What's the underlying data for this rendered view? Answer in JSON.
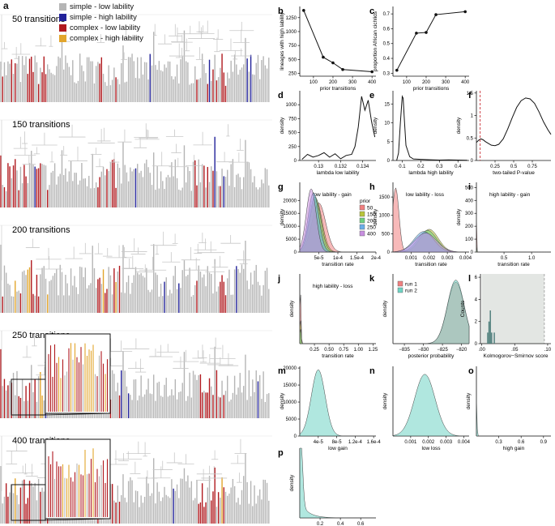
{
  "figure": {
    "legend": [
      {
        "label": "simple - low lability",
        "color": "#b5b5b5"
      },
      {
        "label": "simple - high lability",
        "color": "#22229a"
      },
      {
        "label": "complex - low lability",
        "color": "#b0191e"
      },
      {
        "label": "complex - high lability",
        "color": "#e2a52c"
      }
    ],
    "panel_a": {
      "letter": "a",
      "rows": [
        "50 transitions",
        "150 transitions",
        "200 transitions",
        "250 transitions",
        "400 transitions"
      ]
    }
  },
  "chart_data": [
    {
      "id": "b",
      "type": "line",
      "xlabel": "prior transitions",
      "ylabel": "lineages with high lability",
      "x": [
        50,
        150,
        200,
        250,
        400
      ],
      "y": [
        1380,
        540,
        440,
        320,
        280
      ],
      "xlim": [
        30,
        420
      ],
      "ylim": [
        200,
        1450
      ],
      "xticks": [
        100,
        200,
        300,
        400
      ],
      "yticks": [
        250,
        500,
        750,
        1000,
        1250
      ]
    },
    {
      "id": "c",
      "type": "line",
      "xlabel": "prior transitions",
      "ylabel": "proportion African cichlids",
      "x": [
        50,
        150,
        200,
        250,
        400
      ],
      "y": [
        0.32,
        0.57,
        0.575,
        0.695,
        0.715
      ],
      "xlim": [
        30,
        420
      ],
      "ylim": [
        0.28,
        0.75
      ],
      "xticks": [
        100,
        200,
        300,
        400
      ],
      "yticks": [
        0.3,
        0.4,
        0.5,
        0.6,
        0.7
      ]
    },
    {
      "id": "d",
      "type": "line",
      "xlabel": "lambda low lability",
      "ylabel": "density",
      "x": [
        0.1285,
        0.129,
        0.1295,
        0.13,
        0.1305,
        0.131,
        0.1315,
        0.132,
        0.1325,
        0.133,
        0.1333,
        0.1336,
        0.1339,
        0.1342,
        0.1345,
        0.1348,
        0.1351
      ],
      "y": [
        20,
        110,
        60,
        90,
        140,
        60,
        120,
        30,
        90,
        110,
        250,
        600,
        1150,
        900,
        1080,
        700,
        420
      ],
      "xlim": [
        0.1283,
        0.1352
      ],
      "ylim": [
        0,
        1250
      ],
      "xticks": [
        0.13,
        0.132,
        0.134
      ],
      "yticks": [
        0,
        250,
        500,
        750,
        1000
      ]
    },
    {
      "id": "e",
      "type": "line",
      "xlabel": "lambda high lability",
      "ylabel": "density",
      "x": [
        0.07,
        0.08,
        0.09,
        0.1,
        0.105,
        0.11,
        0.12,
        0.14,
        0.16,
        0.2,
        0.25,
        0.3,
        0.35,
        0.4,
        0.45
      ],
      "y": [
        0,
        2,
        10,
        17,
        16.5,
        12,
        4,
        1,
        0.4,
        0.3,
        0.2,
        0.1,
        0.15,
        0.1,
        0.05
      ],
      "xlim": [
        0.05,
        0.46
      ],
      "ylim": [
        0,
        18.5
      ],
      "xticks": [
        0.1,
        0.2,
        0.3,
        0.4
      ],
      "yticks": [
        0,
        5,
        10,
        15
      ]
    },
    {
      "id": "f",
      "type": "line",
      "xlabel": "two-tailed P-value",
      "ylabel": "density",
      "x": [
        0.0,
        0.03,
        0.06,
        0.09,
        0.12,
        0.16,
        0.2,
        0.25,
        0.3,
        0.36,
        0.42,
        0.48,
        0.54,
        0.6,
        0.66,
        0.72,
        0.78,
        0.84,
        0.9,
        0.96,
        1.0
      ],
      "y": [
        0.4,
        0.45,
        0.48,
        0.46,
        0.42,
        0.38,
        0.34,
        0.33,
        0.36,
        0.48,
        0.7,
        0.95,
        1.18,
        1.33,
        1.39,
        1.37,
        1.27,
        1.08,
        0.86,
        0.68,
        0.58
      ],
      "xlim": [
        0.0,
        1.0
      ],
      "ylim": [
        0.0,
        1.55
      ],
      "xticks": [
        0.25,
        0.5,
        0.75
      ],
      "yticks": [
        0,
        0.5,
        1.0,
        1.5
      ],
      "threshold": 0.05
    },
    {
      "id": "g",
      "type": "area",
      "title": "low lability - gain",
      "xlabel": "transition rate",
      "ylabel": "density",
      "legend_title": "prior",
      "xlim": [
        0,
        0.0002
      ],
      "ylim": [
        0,
        27000
      ],
      "xticks": [
        5e-05,
        0.0001,
        0.00015,
        0.0002
      ],
      "xtick_labels": [
        "5e-5",
        "1e-4",
        "1.5e-4",
        "2e-4"
      ],
      "yticks": [
        0,
        5000,
        10000,
        15000,
        20000
      ],
      "series": [
        {
          "name": "50",
          "color": "#f08080",
          "mean": 5e-05,
          "sd": 1.8e-05,
          "peak": 19000
        },
        {
          "name": "150",
          "color": "#b8c43a",
          "mean": 4.2e-05,
          "sd": 1.6e-05,
          "peak": 20500
        },
        {
          "name": "200",
          "color": "#6fcf80",
          "mean": 4e-05,
          "sd": 1.5e-05,
          "peak": 21500
        },
        {
          "name": "250",
          "color": "#6aaee8",
          "mean": 3.6e-05,
          "sd": 1.4e-05,
          "peak": 23000
        },
        {
          "name": "400",
          "color": "#c88fe0",
          "mean": 3e-05,
          "sd": 1.3e-05,
          "peak": 24500
        }
      ]
    },
    {
      "id": "h",
      "type": "area",
      "title": "low lability - loss",
      "xlabel": "transition rate",
      "ylabel": "density",
      "xlim": [
        0,
        0.0042
      ],
      "ylim": [
        0,
        1900
      ],
      "xticks": [
        0.001,
        0.002,
        0.003,
        0.004
      ],
      "xtick_labels": [
        "0.001",
        "0.002",
        "0.003",
        "0.004"
      ],
      "yticks": [
        0,
        500,
        1000,
        1500
      ],
      "series": [
        {
          "name": "50",
          "color": "#f08080",
          "mean": 0.00015,
          "sd": 0.00018,
          "peak": 1750
        },
        {
          "name": "150",
          "color": "#b8c43a",
          "mean": 0.002,
          "sd": 0.0005,
          "peak": 620
        },
        {
          "name": "200",
          "color": "#6fcf80",
          "mean": 0.0019,
          "sd": 0.00052,
          "peak": 590
        },
        {
          "name": "250",
          "color": "#6aaee8",
          "mean": 0.0017,
          "sd": 0.00055,
          "peak": 560
        },
        {
          "name": "400",
          "color": "#c88fe0",
          "mean": 0.0018,
          "sd": 0.0006,
          "peak": 520
        }
      ]
    },
    {
      "id": "i",
      "type": "area",
      "title": "high lability - gain",
      "xlabel": "transition rate",
      "ylabel": "density",
      "xlim": [
        0,
        1.35
      ],
      "ylim": [
        0,
        540
      ],
      "xticks": [
        0.5,
        1.0
      ],
      "xtick_labels": [
        "0.5",
        "1.0"
      ],
      "yticks": [
        0,
        100,
        200,
        300,
        400,
        500
      ],
      "series": [
        {
          "name": "50",
          "color": "#f08080",
          "mean": 0.004,
          "sd": 0.004,
          "peak": 480
        },
        {
          "name": "150",
          "color": "#b8c43a",
          "mean": 0.004,
          "sd": 0.004,
          "peak": 90
        },
        {
          "name": "200",
          "color": "#6fcf80",
          "mean": 0.004,
          "sd": 0.004,
          "peak": 60
        }
      ]
    },
    {
      "id": "j",
      "type": "area",
      "title": "high lability - loss",
      "xlabel": "transition rate",
      "ylabel": "density",
      "xlim": [
        0,
        1.3
      ],
      "ylim": [
        0,
        100
      ],
      "xticks": [
        0.25,
        0.5,
        0.75,
        1.0,
        1.25
      ],
      "xtick_labels": [
        "0.25",
        "0.50",
        "0.75",
        "1.00",
        "1.25"
      ],
      "yticks": [],
      "series": [
        {
          "name": "50",
          "color": "#f08080",
          "mean": 0.01,
          "sd": 0.01,
          "peak": 85
        },
        {
          "name": "150",
          "color": "#b8c43a",
          "mean": 0.01,
          "sd": 0.01,
          "peak": 40
        },
        {
          "name": "200",
          "color": "#6fcf80",
          "mean": 0.01,
          "sd": 0.01,
          "peak": 25
        }
      ]
    },
    {
      "id": "k",
      "type": "area",
      "xlabel": "posterior probability",
      "ylabel": "density",
      "xlim": [
        -838,
        -818
      ],
      "ylim": [
        0,
        0.34
      ],
      "xticks": [
        -835,
        -830,
        -825,
        -820
      ],
      "xtick_labels": [
        "−835",
        "−830",
        "−825",
        "−820"
      ],
      "yticks": [],
      "series": [
        {
          "name": "run 1",
          "color": "#f08080",
          "mean": -821.5,
          "sd": 2.2,
          "peak": 0.3
        },
        {
          "name": "run 2",
          "color": "#6fd4c4",
          "mean": -821.5,
          "sd": 2.2,
          "peak": 0.31
        }
      ]
    },
    {
      "id": "l",
      "type": "bar",
      "xlabel": "Kolmogorov−Smirnov score",
      "ylabel": "Counts",
      "x": [
        0.009,
        0.011,
        0.013,
        0.015,
        0.017,
        0.019
      ],
      "values": [
        1,
        2,
        3,
        1,
        0,
        1
      ],
      "xlim": [
        -0.002,
        0.105
      ],
      "ylim": [
        0,
        6.3
      ],
      "xticks": [
        0.0,
        0.05,
        0.1
      ],
      "xtick_labels": [
        ".00",
        ".05",
        ".10"
      ],
      "yticks": [
        0,
        2,
        4,
        6
      ],
      "shade_from": 0.0,
      "shade_to": 0.095
    },
    {
      "id": "m",
      "type": "area",
      "xlabel": "low gain",
      "ylabel": "density",
      "xlim": [
        0,
        0.000165
      ],
      "ylim": [
        0,
        20500
      ],
      "xticks": [
        4e-05,
        8e-05,
        0.00012,
        0.00016
      ],
      "xtick_labels": [
        "4e-5",
        "8e-5",
        "1.2e-4",
        "1.6e-4"
      ],
      "yticks": [
        0,
        5000,
        10000,
        15000,
        20000
      ],
      "series": [
        {
          "name": "",
          "color": "#6fd4c4",
          "mean": 4e-05,
          "sd": 1.5e-05,
          "peak": 19500
        }
      ]
    },
    {
      "id": "n",
      "type": "area",
      "xlabel": "low loss",
      "ylabel": "density",
      "xlim": [
        0,
        0.0043
      ],
      "ylim": [
        0,
        700
      ],
      "xticks": [
        0.001,
        0.002,
        0.003,
        0.004
      ],
      "xtick_labels": [
        "0.001",
        "0.002",
        "0.003",
        "0.004"
      ],
      "yticks": [],
      "series": [
        {
          "name": "",
          "color": "#6fd4c4",
          "mean": 0.0018,
          "sd": 0.00058,
          "peak": 620
        }
      ]
    },
    {
      "id": "o",
      "type": "area",
      "xlabel": "high gain",
      "ylabel": "density",
      "xlim": [
        0,
        1.0
      ],
      "ylim": [
        0,
        100
      ],
      "xticks": [
        0.3,
        0.6,
        0.9
      ],
      "xtick_labels": [
        "0.3",
        "0.6",
        "0.9"
      ],
      "yticks": [],
      "series": [
        {
          "name": "",
          "color": "#6fd4c4",
          "mean": 0.004,
          "sd": 0.004,
          "peak": 95
        }
      ]
    },
    {
      "id": "p",
      "type": "area",
      "xlabel": "high loss",
      "ylabel": "density",
      "xlim": [
        0,
        0.75
      ],
      "ylim": [
        0,
        100
      ],
      "xticks": [
        0.2,
        0.4,
        0.6
      ],
      "xtick_labels": [
        "0.2",
        "0.4",
        "0.6"
      ],
      "yticks": [],
      "series": [
        {
          "name": "",
          "color": "#6fd4c4",
          "mean": 0.01,
          "sd": 0.018,
          "peak": 95,
          "tail": true
        }
      ]
    }
  ]
}
